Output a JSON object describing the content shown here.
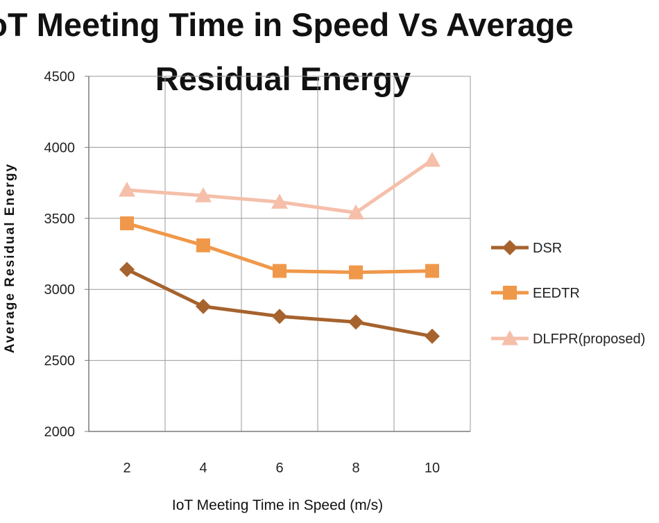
{
  "chart_data": {
    "type": "line",
    "title": [
      "IoT Meeting Time in Speed Vs Average",
      "Residual Energy"
    ],
    "xlabel": "IoT Meeting Time in Speed (m/s)",
    "ylabel": "Average Residual Energy",
    "categories": [
      "2",
      "4",
      "6",
      "8",
      "10"
    ],
    "ylim": [
      2000,
      4500
    ],
    "yticks": [
      "2000",
      "2500",
      "3000",
      "3500",
      "4000",
      "4500"
    ],
    "grid": true,
    "legend_position": "right",
    "series": [
      {
        "name": "DSR",
        "values": [
          3140,
          2880,
          2810,
          2770,
          2670
        ],
        "color": "#A6632E",
        "marker": "diamond"
      },
      {
        "name": "EEDTR",
        "values": [
          3465,
          3310,
          3130,
          3120,
          3130
        ],
        "color": "#F0984A",
        "marker": "square"
      },
      {
        "name": "DLFPR(proposed)",
        "values": [
          3700,
          3660,
          3615,
          3540,
          3910
        ],
        "color": "#F5BFAA",
        "marker": "triangle"
      }
    ]
  }
}
